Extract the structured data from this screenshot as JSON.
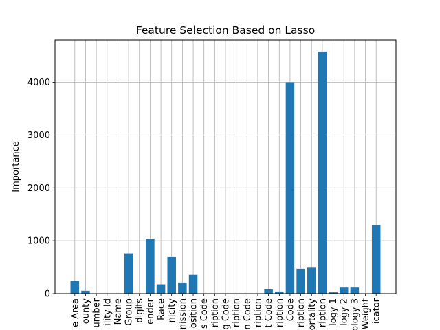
{
  "chart_data": {
    "type": "bar",
    "title": "Feature Selection Based on Lasso",
    "xlabel": "",
    "ylabel": "Importance",
    "ylim": [
      0,
      4800
    ],
    "yticks": [
      0,
      1000,
      2000,
      3000,
      4000
    ],
    "grid": true,
    "bar_color": "#1f77b4",
    "categories": [
      "e Area",
      "ounty",
      "umber",
      "ility Id",
      "Name",
      "Group",
      "digits",
      "ender",
      "Race",
      "nicity",
      "nission",
      "osition",
      "s Code",
      "ription",
      "g Code",
      "ription",
      "n Code",
      "ription",
      "t Code",
      "ription",
      "Code",
      "ription",
      "ortality",
      "ription",
      "logy 1",
      "logy 2",
      "ology 3",
      "Weight",
      "icator"
    ],
    "values": [
      240,
      55,
      0,
      0,
      0,
      760,
      0,
      1040,
      175,
      690,
      210,
      355,
      0,
      0,
      0,
      0,
      0,
      0,
      80,
      40,
      4000,
      470,
      490,
      4580,
      25,
      115,
      115,
      0,
      1290
    ]
  }
}
